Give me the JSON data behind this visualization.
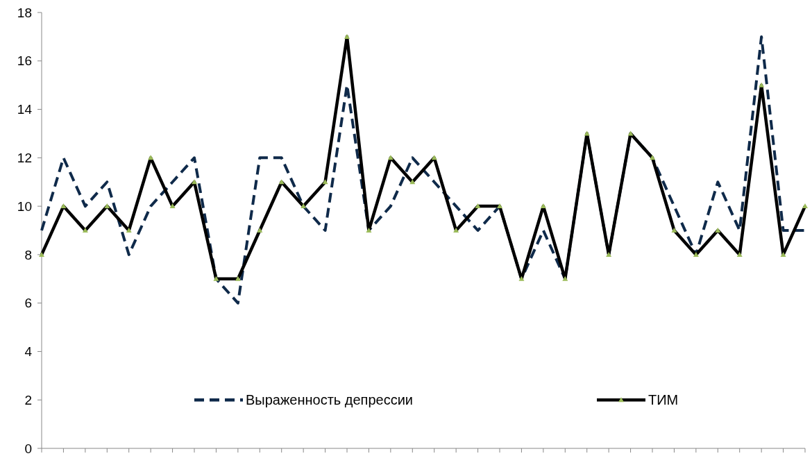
{
  "chart_data": {
    "type": "line",
    "categories": [
      null,
      null,
      null,
      null,
      null,
      null,
      null,
      null,
      null,
      null,
      null,
      null,
      null,
      null,
      null,
      null,
      null,
      null,
      null,
      null,
      null,
      null,
      null,
      null,
      null,
      null,
      null,
      null,
      null,
      null,
      null,
      null,
      null,
      null,
      null,
      null
    ],
    "series": [
      {
        "name": "Выраженность депрессии",
        "color": "#0f2a4a",
        "line_style": "dashed",
        "marker": "none",
        "values": [
          9,
          12,
          10,
          11,
          8,
          10,
          11,
          12,
          7,
          6,
          12,
          12,
          10,
          9,
          15,
          9,
          10,
          12,
          11,
          10,
          9,
          10,
          7,
          9,
          7,
          13,
          8,
          13,
          12,
          10,
          8,
          11,
          9,
          17,
          9,
          9
        ]
      },
      {
        "name": "ТИМ",
        "color": "#000000",
        "line_style": "solid",
        "marker": "triangle",
        "values": [
          8,
          10,
          9,
          10,
          9,
          12,
          10,
          11,
          7,
          7,
          9,
          11,
          10,
          11,
          17,
          9,
          12,
          11,
          12,
          9,
          10,
          10,
          7,
          10,
          7,
          13,
          8,
          13,
          12,
          9,
          8,
          9,
          8,
          15,
          8,
          10
        ]
      }
    ],
    "ylim": [
      0,
      18
    ],
    "yticks": [
      0,
      2,
      4,
      6,
      8,
      10,
      12,
      14,
      16,
      18
    ],
    "grid": false,
    "legend": "bottom"
  }
}
